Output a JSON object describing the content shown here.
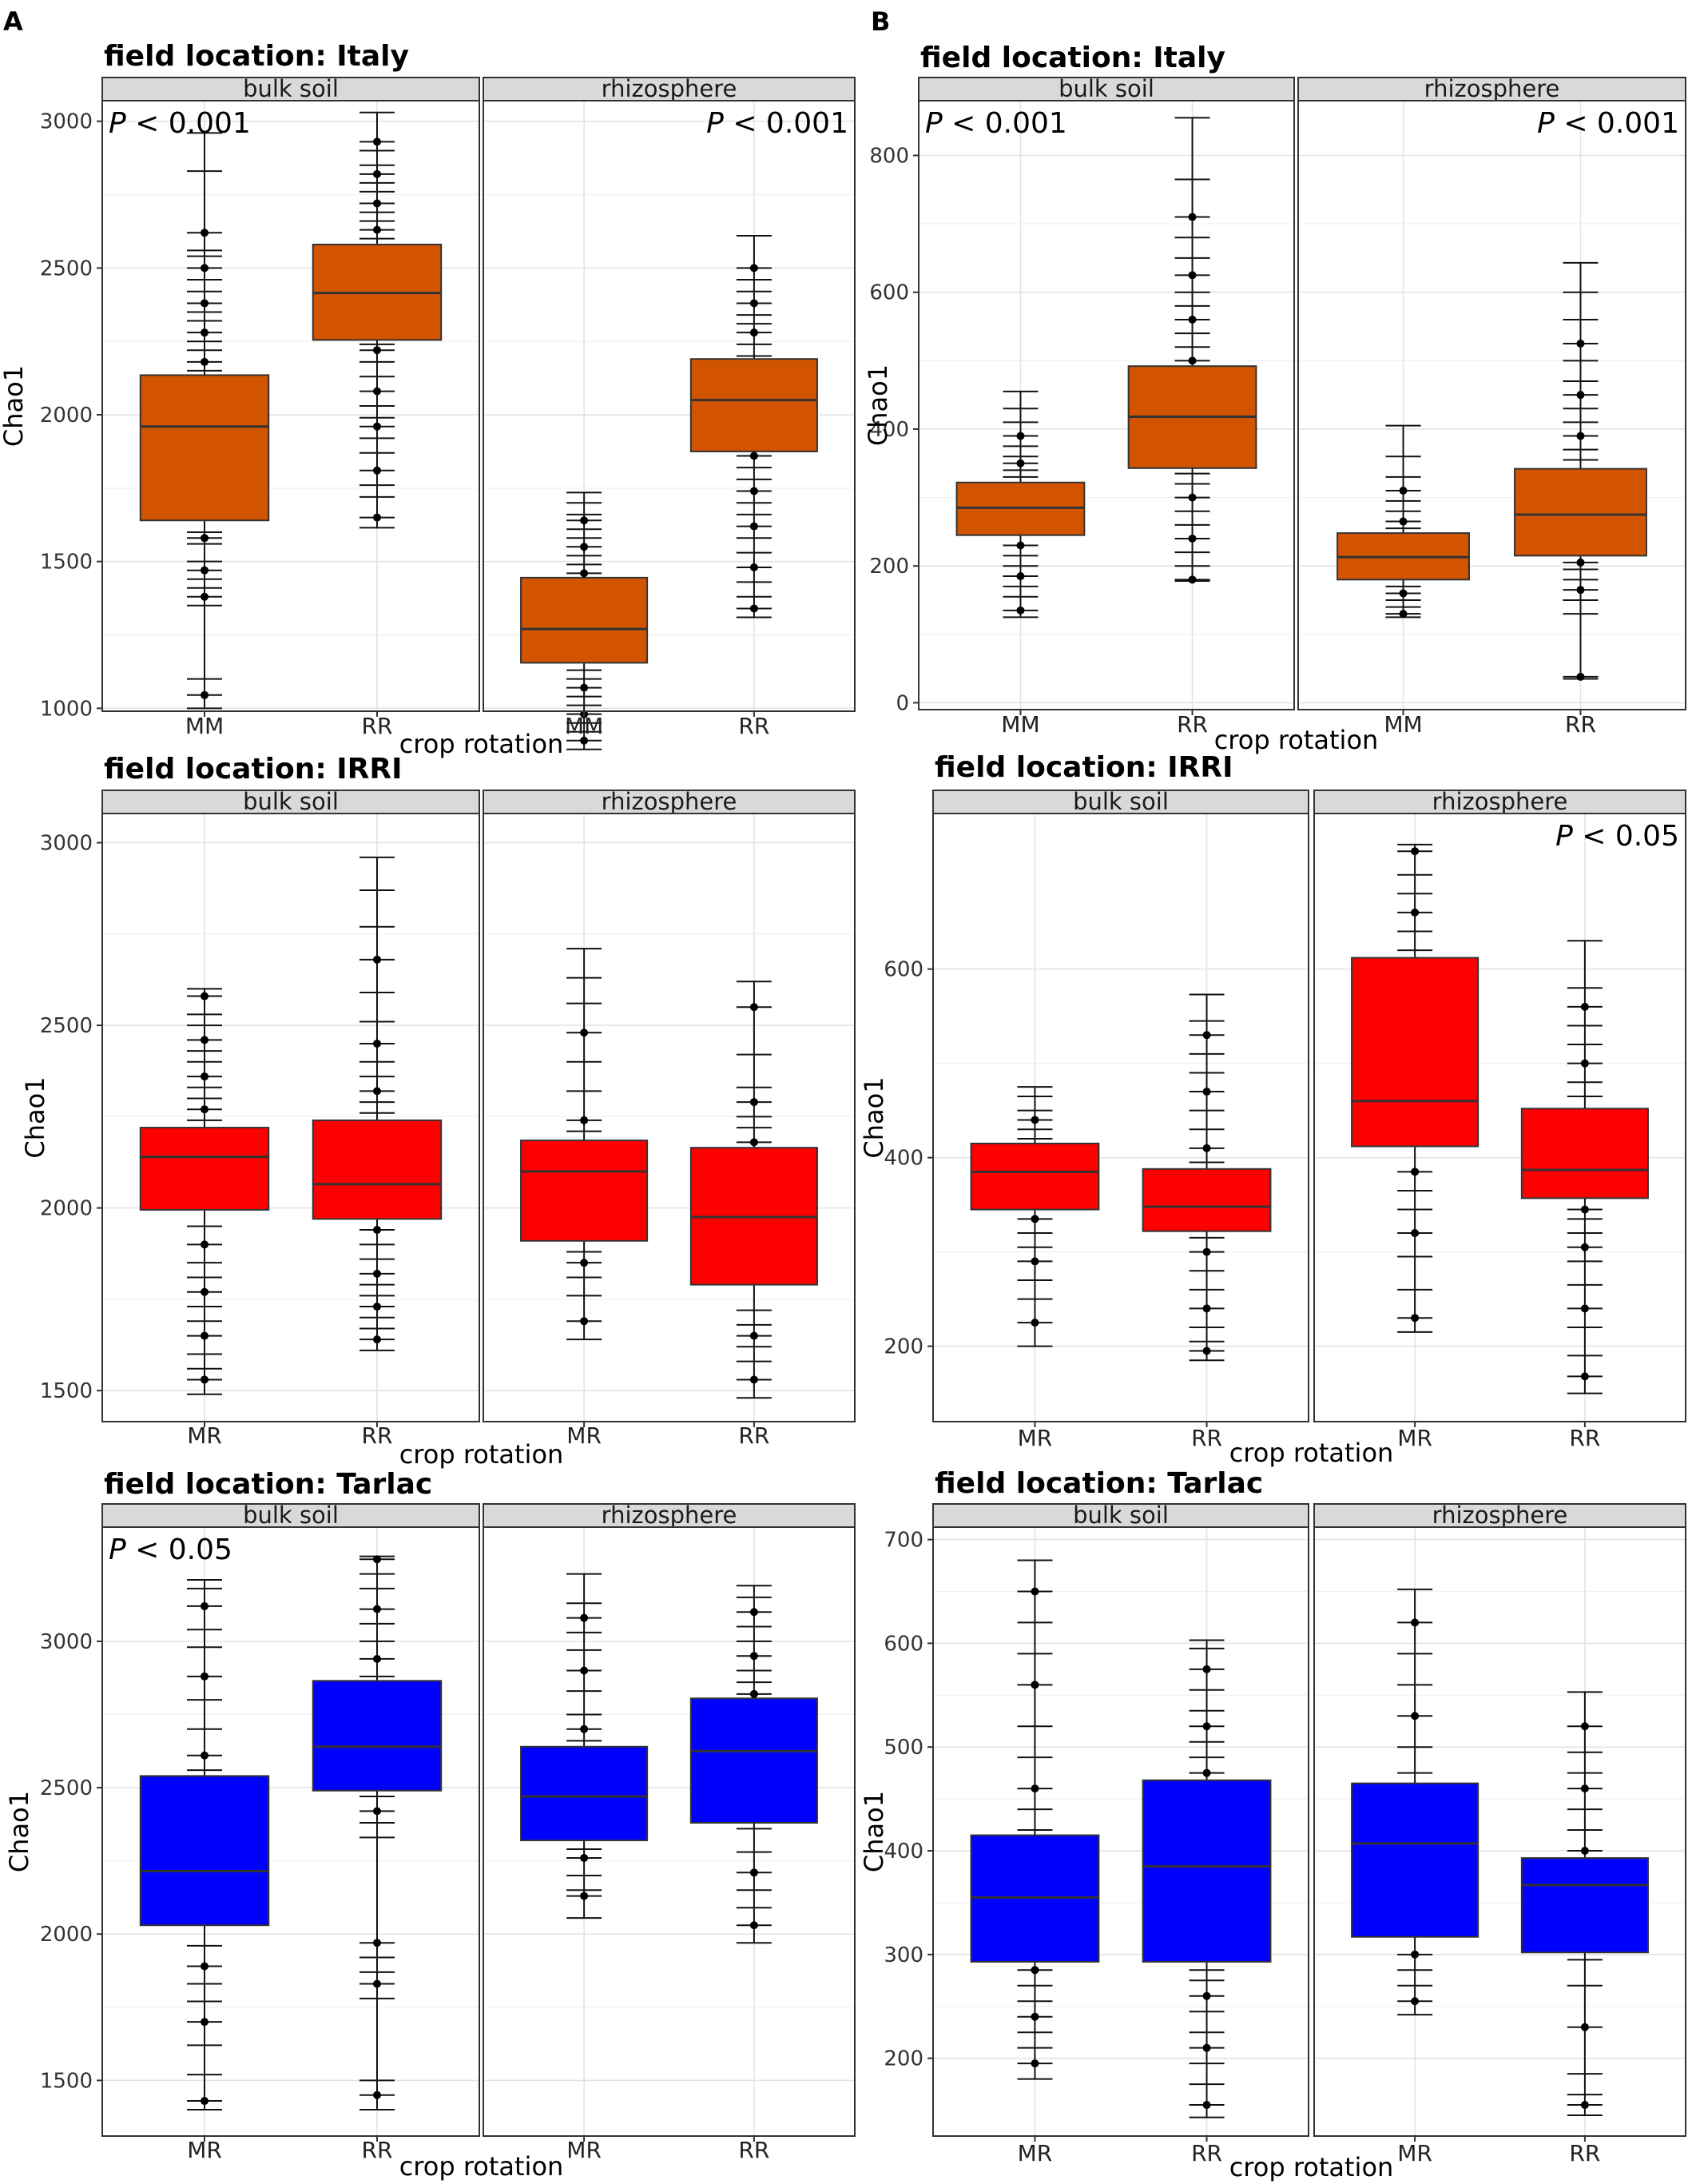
{
  "panel_labels": [
    "A",
    "B"
  ],
  "chart_data": [
    {
      "type": "box",
      "panel": "A",
      "title": "field location: Italy",
      "fill": "#D35400",
      "ylabel": "Chao1",
      "xlabel": "crop rotation",
      "ylim": [
        990,
        3070
      ],
      "yticks": [
        1000,
        1500,
        2000,
        2500,
        3000
      ],
      "facets": [
        {
          "strip": "bulk soil",
          "pvalue": "< 0.001",
          "categories": [
            "MM",
            "RR"
          ],
          "boxes": [
            {
              "q1": 1640,
              "median": 1960,
              "q3": 2135,
              "whislo": 1000,
              "whishi": 2960,
              "points": [
                1045,
                1100,
                1350,
                1380,
                1410,
                1440,
                1470,
                1500,
                1560,
                1580,
                1600,
                2150,
                2180,
                2220,
                2250,
                2280,
                2320,
                2350,
                2380,
                2420,
                2460,
                2500,
                2540,
                2560,
                2620,
                2830
              ]
            },
            {
              "q1": 2255,
              "median": 2415,
              "q3": 2580,
              "whislo": 1615,
              "whishi": 3030,
              "points": [
                1650,
                1720,
                1760,
                1810,
                1870,
                1920,
                1960,
                1990,
                2030,
                2080,
                2130,
                2180,
                2220,
                2240,
                2600,
                2630,
                2660,
                2690,
                2720,
                2760,
                2790,
                2820,
                2850,
                2900,
                2930
              ]
            }
          ]
        },
        {
          "strip": "rhizosphere",
          "pvalue": "< 0.001",
          "categories": [
            "MM",
            "RR"
          ],
          "boxes": [
            {
              "q1": 1155,
              "median": 1270,
              "q3": 1445,
              "whislo": 860,
              "whishi": 1735,
              "points": [
                890,
                920,
                950,
                980,
                1010,
                1040,
                1070,
                1100,
                1130,
                1460,
                1490,
                1520,
                1550,
                1580,
                1610,
                1640,
                1660,
                1700
              ]
            },
            {
              "q1": 1875,
              "median": 2050,
              "q3": 2190,
              "whislo": 1310,
              "whishi": 2610,
              "points": [
                1340,
                1380,
                1430,
                1480,
                1530,
                1580,
                1620,
                1660,
                1700,
                1740,
                1780,
                1820,
                1860,
                2200,
                2240,
                2280,
                2310,
                2340,
                2380,
                2420,
                2460,
                2500
              ]
            }
          ]
        }
      ]
    },
    {
      "type": "box",
      "panel": "B",
      "title": "field location: Italy",
      "fill": "#D35400",
      "ylabel": "Chao1",
      "xlabel": "crop rotation",
      "ylim": [
        -10,
        880
      ],
      "yticks": [
        0,
        200,
        400,
        600,
        800
      ],
      "facets": [
        {
          "strip": "bulk soil",
          "pvalue": "< 0.001",
          "categories": [
            "MM",
            "RR"
          ],
          "boxes": [
            {
              "q1": 245,
              "median": 285,
              "q3": 322,
              "whislo": 125,
              "whishi": 455,
              "points": [
                135,
                155,
                170,
                185,
                200,
                215,
                230,
                330,
                340,
                350,
                360,
                375,
                390,
                410,
                430
              ]
            },
            {
              "q1": 343,
              "median": 418,
              "q3": 492,
              "whislo": 178,
              "whishi": 855,
              "points": [
                180,
                200,
                220,
                240,
                260,
                280,
                300,
                320,
                335,
                500,
                520,
                540,
                560,
                580,
                600,
                625,
                650,
                680,
                710,
                765
              ]
            }
          ]
        },
        {
          "strip": "rhizosphere",
          "pvalue": "< 0.001",
          "categories": [
            "MM",
            "RR"
          ],
          "boxes": [
            {
              "q1": 180,
              "median": 213,
              "q3": 248,
              "whislo": 125,
              "whishi": 405,
              "points": [
                130,
                140,
                150,
                160,
                170,
                255,
                265,
                280,
                295,
                310,
                330,
                360
              ]
            },
            {
              "q1": 215,
              "median": 275,
              "q3": 342,
              "whislo": 35,
              "whishi": 643,
              "points": [
                38,
                130,
                150,
                165,
                180,
                195,
                205,
                355,
                370,
                390,
                410,
                430,
                450,
                470,
                500,
                525,
                560,
                600
              ]
            }
          ]
        }
      ]
    },
    {
      "type": "box",
      "panel": "A",
      "title": "field location: IRRI",
      "fill": "#FF0000",
      "ylabel": "Chao1",
      "xlabel": "crop rotation",
      "ylim": [
        1415,
        3080
      ],
      "yticks": [
        1500,
        2000,
        2500,
        3000
      ],
      "facets": [
        {
          "strip": "bulk soil",
          "pvalue": "",
          "categories": [
            "MR",
            "RR"
          ],
          "boxes": [
            {
              "q1": 1995,
              "median": 2140,
              "q3": 2220,
              "whislo": 1490,
              "whishi": 2600,
              "points": [
                1530,
                1560,
                1600,
                1650,
                1690,
                1730,
                1770,
                1810,
                1850,
                1900,
                1950,
                2240,
                2270,
                2300,
                2330,
                2360,
                2400,
                2430,
                2460,
                2500,
                2530,
                2580
              ]
            },
            {
              "q1": 1970,
              "median": 2065,
              "q3": 2240,
              "whislo": 1610,
              "whishi": 2960,
              "points": [
                1640,
                1670,
                1700,
                1730,
                1760,
                1790,
                1820,
                1860,
                1900,
                1940,
                2260,
                2290,
                2320,
                2360,
                2400,
                2450,
                2510,
                2590,
                2680,
                2770,
                2870
              ]
            }
          ]
        },
        {
          "strip": "rhizosphere",
          "pvalue": "",
          "categories": [
            "MR",
            "RR"
          ],
          "boxes": [
            {
              "q1": 1910,
              "median": 2100,
              "q3": 2185,
              "whislo": 1640,
              "whishi": 2710,
              "points": [
                1690,
                1760,
                1810,
                1850,
                1880,
                2210,
                2240,
                2320,
                2400,
                2480,
                2560,
                2630
              ]
            },
            {
              "q1": 1790,
              "median": 1975,
              "q3": 2165,
              "whislo": 1480,
              "whishi": 2620,
              "points": [
                1530,
                1580,
                1620,
                1650,
                1680,
                1720,
                2180,
                2220,
                2250,
                2290,
                2330,
                2420,
                2550
              ]
            }
          ]
        }
      ]
    },
    {
      "type": "box",
      "panel": "B",
      "title": "field location: IRRI",
      "fill": "#FF0000",
      "ylabel": "Chao1",
      "xlabel": "crop rotation",
      "ylim": [
        120,
        765
      ],
      "yticks": [
        200,
        400,
        600
      ],
      "facets": [
        {
          "strip": "bulk soil",
          "pvalue": "",
          "categories": [
            "MR",
            "RR"
          ],
          "boxes": [
            {
              "q1": 345,
              "median": 385,
              "q3": 415,
              "whislo": 200,
              "whishi": 475,
              "points": [
                225,
                250,
                270,
                290,
                305,
                320,
                335,
                420,
                430,
                440,
                450,
                465
              ]
            },
            {
              "q1": 322,
              "median": 348,
              "q3": 388,
              "whislo": 185,
              "whishi": 573,
              "points": [
                195,
                205,
                220,
                240,
                260,
                280,
                300,
                315,
                395,
                410,
                430,
                450,
                470,
                490,
                510,
                530,
                545
              ]
            }
          ]
        },
        {
          "strip": "rhizosphere",
          "pvalue": "< 0.05",
          "categories": [
            "MR",
            "RR"
          ],
          "boxes": [
            {
              "q1": 412,
              "median": 460,
              "q3": 612,
              "whislo": 215,
              "whishi": 732,
              "points": [
                230,
                260,
                295,
                320,
                345,
                365,
                385,
                620,
                640,
                660,
                680,
                700,
                725
              ]
            },
            {
              "q1": 357,
              "median": 387,
              "q3": 452,
              "whislo": 150,
              "whishi": 630,
              "points": [
                168,
                190,
                220,
                240,
                265,
                290,
                305,
                320,
                335,
                345,
                465,
                480,
                500,
                520,
                540,
                560,
                580
              ]
            }
          ]
        }
      ]
    },
    {
      "type": "box",
      "panel": "A",
      "title": "field location: Tarlac",
      "fill": "#0000FF",
      "ylabel": "Chao1",
      "xlabel": "crop rotation",
      "ylim": [
        1310,
        3390
      ],
      "yticks": [
        1500,
        2000,
        2500,
        3000
      ],
      "facets": [
        {
          "strip": "bulk soil",
          "pvalue": "< 0.05",
          "categories": [
            "MR",
            "RR"
          ],
          "boxes": [
            {
              "q1": 2030,
              "median": 2215,
              "q3": 2540,
              "whislo": 1400,
              "whishi": 3210,
              "points": [
                1430,
                1520,
                1620,
                1700,
                1770,
                1830,
                1890,
                1960,
                2560,
                2610,
                2700,
                2800,
                2880,
                2980,
                3040,
                3120,
                3180
              ]
            },
            {
              "q1": 2490,
              "median": 2640,
              "q3": 2865,
              "whislo": 1400,
              "whishi": 3290,
              "points": [
                1450,
                1500,
                1780,
                1830,
                1870,
                1920,
                1970,
                2330,
                2380,
                2420,
                2470,
                2880,
                2940,
                3000,
                3060,
                3110,
                3180,
                3230,
                3280
              ]
            }
          ]
        },
        {
          "strip": "rhizosphere",
          "pvalue": "",
          "categories": [
            "MR",
            "RR"
          ],
          "boxes": [
            {
              "q1": 2320,
              "median": 2470,
              "q3": 2640,
              "whislo": 2055,
              "whishi": 3230,
              "points": [
                2130,
                2150,
                2200,
                2260,
                2290,
                2660,
                2700,
                2750,
                2830,
                2900,
                2970,
                3030,
                3080,
                3130
              ]
            },
            {
              "q1": 2380,
              "median": 2625,
              "q3": 2805,
              "whislo": 1970,
              "whishi": 3190,
              "points": [
                2030,
                2090,
                2150,
                2210,
                2280,
                2360,
                2820,
                2860,
                2900,
                2950,
                3000,
                3050,
                3100,
                3150
              ]
            }
          ]
        }
      ]
    },
    {
      "type": "box",
      "panel": "B",
      "title": "field location: Tarlac",
      "fill": "#0000FF",
      "ylabel": "Chao1",
      "xlabel": "crop rotation",
      "ylim": [
        125,
        712
      ],
      "yticks": [
        200,
        300,
        400,
        500,
        600,
        700
      ],
      "facets": [
        {
          "strip": "bulk soil",
          "pvalue": "",
          "categories": [
            "MR",
            "RR"
          ],
          "boxes": [
            {
              "q1": 293,
              "median": 355,
              "q3": 415,
              "whislo": 180,
              "whishi": 680,
              "points": [
                195,
                210,
                225,
                240,
                255,
                270,
                285,
                420,
                440,
                460,
                490,
                520,
                560,
                590,
                620,
                650
              ]
            },
            {
              "q1": 293,
              "median": 385,
              "q3": 468,
              "whislo": 143,
              "whishi": 603,
              "points": [
                155,
                175,
                195,
                210,
                225,
                245,
                260,
                275,
                285,
                475,
                490,
                505,
                520,
                535,
                555,
                575,
                595
              ]
            }
          ]
        },
        {
          "strip": "rhizosphere",
          "pvalue": "",
          "categories": [
            "MR",
            "RR"
          ],
          "boxes": [
            {
              "q1": 317,
              "median": 407,
              "q3": 465,
              "whislo": 242,
              "whishi": 652,
              "points": [
                255,
                270,
                285,
                300,
                475,
                500,
                530,
                560,
                590,
                620
              ]
            },
            {
              "q1": 302,
              "median": 367,
              "q3": 393,
              "whislo": 145,
              "whishi": 553,
              "points": [
                155,
                165,
                185,
                230,
                270,
                295,
                400,
                420,
                440,
                460,
                475,
                495,
                520
              ]
            }
          ]
        }
      ]
    }
  ]
}
